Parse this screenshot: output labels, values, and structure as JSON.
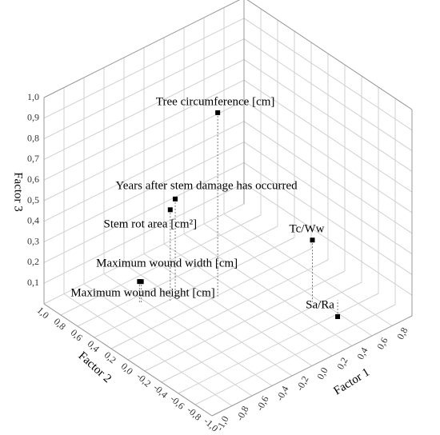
{
  "chart_data": {
    "type": "scatter3d",
    "xlabel": "Factor 1",
    "ylabel": "Factor 2",
    "zlabel": "Factor 3",
    "labels": [
      "Tree circumference [cm]",
      "Years after stem damage has occurred",
      "Stem rot area [cm²]",
      "Maximum wound width [cm]",
      "Maximum wound height [cm]",
      "Tc/Ww",
      "Sa/Ra"
    ],
    "x": [
      0.04,
      -0.2,
      -0.25,
      -0.43,
      -0.44,
      0.55,
      0.71
    ],
    "y": [
      0.17,
      0.39,
      0.39,
      0.52,
      0.53,
      -0.35,
      -0.46
    ],
    "z": [
      0.9,
      0.48,
      0.44,
      0.1,
      0.1,
      0.3,
      -0.08
    ],
    "color": "#000000",
    "xlim": [
      -1,
      1
    ],
    "ylim": [
      -1,
      1
    ],
    "zlim": [
      0,
      1
    ],
    "xticks": [
      {
        "value": -1,
        "label": "-1,0"
      },
      {
        "value": -0.8,
        "label": "-0,8"
      },
      {
        "value": -0.6,
        "label": "-0,6"
      },
      {
        "value": -0.4,
        "label": "-0,4"
      },
      {
        "value": -0.2,
        "label": "-0,2"
      },
      {
        "value": 0,
        "label": "0,0"
      },
      {
        "value": 0.2,
        "label": "0,2"
      },
      {
        "value": 0.4,
        "label": "0,4"
      },
      {
        "value": 0.6,
        "label": "0,6"
      },
      {
        "value": 0.8,
        "label": "0,8"
      }
    ],
    "yticks": [
      {
        "value": 1,
        "label": "1,0"
      },
      {
        "value": 0.8,
        "label": "0,8"
      },
      {
        "value": 0.6,
        "label": "0,6"
      },
      {
        "value": 0.4,
        "label": "0,4"
      },
      {
        "value": 0.2,
        "label": "0,2"
      },
      {
        "value": 0,
        "label": "0,0"
      },
      {
        "value": -0.2,
        "label": "-0,2"
      },
      {
        "value": -0.4,
        "label": "-0,4"
      },
      {
        "value": -0.6,
        "label": "-0,6"
      },
      {
        "value": -0.8,
        "label": "-0,8"
      },
      {
        "value": -1,
        "label": "-1,0"
      }
    ],
    "zticks": [
      {
        "value": 0.1,
        "label": "0,1"
      },
      {
        "value": 0.2,
        "label": "0,2"
      },
      {
        "value": 0.3,
        "label": "0,3"
      },
      {
        "value": 0.4,
        "label": "0,4"
      },
      {
        "value": 0.5,
        "label": "0,5"
      },
      {
        "value": 0.6,
        "label": "0,6"
      },
      {
        "value": 0.7,
        "label": "0,7"
      },
      {
        "value": 0.8,
        "label": "0,8"
      },
      {
        "value": 0.9,
        "label": "0,9"
      },
      {
        "value": 1,
        "label": "1,0"
      }
    ],
    "grid": true
  }
}
